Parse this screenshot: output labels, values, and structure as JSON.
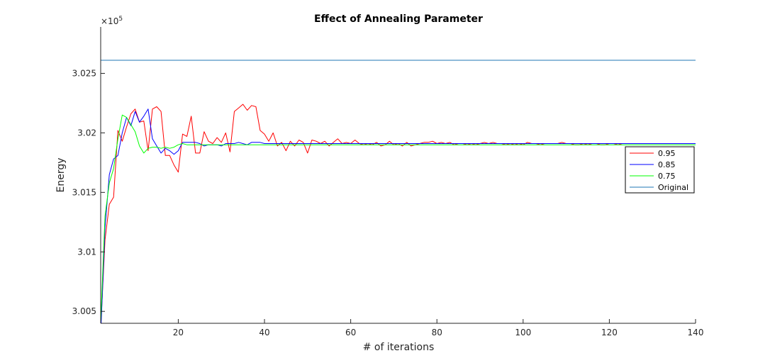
{
  "chart_data": {
    "type": "line",
    "title": "Effect of Annealing Parameter",
    "xlabel": "# of iterations",
    "ylabel": "Energy",
    "y_multiplier_label": "×10",
    "y_multiplier_exponent": "5",
    "xlim": [
      2,
      140
    ],
    "ylim": [
      3.004,
      3.0289
    ],
    "xticks": [
      20,
      40,
      60,
      80,
      100,
      120,
      140
    ],
    "xtick_labels": [
      "20",
      "40",
      "60",
      "80",
      "100",
      "120",
      "140"
    ],
    "yticks": [
      3.005,
      3.01,
      3.015,
      3.02,
      3.025
    ],
    "ytick_labels": [
      "3.005",
      "3.01",
      "3.015",
      "3.02",
      "3.025"
    ],
    "grid": false,
    "legend_position": "right",
    "series": [
      {
        "name": "0.95",
        "color": "#ff0000",
        "x": [
          2,
          3,
          4,
          5,
          6,
          7,
          8,
          9,
          10,
          11,
          12,
          13,
          14,
          15,
          16,
          17,
          18,
          19,
          20,
          21,
          22,
          23,
          24,
          25,
          26,
          27,
          28,
          29,
          30,
          31,
          32,
          33,
          34,
          35,
          36,
          37,
          38,
          39,
          40,
          41,
          42,
          43,
          44,
          45,
          46,
          47,
          48,
          49,
          50,
          51,
          52,
          53,
          54,
          55,
          56,
          57,
          58,
          59,
          60,
          61,
          62,
          63,
          64,
          65,
          66,
          67,
          68,
          69,
          70,
          71,
          72,
          73,
          74,
          75,
          76,
          77,
          78,
          79,
          80,
          81,
          82,
          83,
          84,
          85,
          86,
          87,
          88,
          89,
          90,
          91,
          92,
          93,
          94,
          95,
          96,
          97,
          98,
          99,
          100,
          101,
          102,
          103,
          104,
          105,
          106,
          107,
          108,
          109,
          110,
          111,
          112,
          113,
          114,
          115,
          116,
          117,
          118,
          119,
          120,
          121,
          122,
          123,
          124,
          125,
          126,
          127,
          128,
          129,
          130,
          131,
          132,
          133,
          134,
          135,
          136,
          137,
          138,
          139,
          140
        ],
        "y": [
          3.0035,
          3.011,
          3.014,
          3.0146,
          3.0202,
          3.0193,
          3.0205,
          3.0216,
          3.022,
          3.0209,
          3.021,
          3.0185,
          3.022,
          3.0222,
          3.0218,
          3.0181,
          3.0181,
          3.0173,
          3.0167,
          3.0199,
          3.0197,
          3.0214,
          3.0183,
          3.0183,
          3.0201,
          3.0193,
          3.0191,
          3.0196,
          3.0192,
          3.02,
          3.0184,
          3.0218,
          3.0221,
          3.0224,
          3.0219,
          3.0223,
          3.0222,
          3.0202,
          3.0199,
          3.0193,
          3.02,
          3.0189,
          3.0192,
          3.0185,
          3.0193,
          3.0189,
          3.0194,
          3.0192,
          3.0183,
          3.0194,
          3.0193,
          3.0191,
          3.0193,
          3.0189,
          3.0192,
          3.0195,
          3.0191,
          3.0192,
          3.0191,
          3.0194,
          3.0191,
          3.019,
          3.0191,
          3.019,
          3.0192,
          3.0189,
          3.019,
          3.0193,
          3.019,
          3.0191,
          3.0189,
          3.0192,
          3.0189,
          3.019,
          3.0191,
          3.0192,
          3.0192,
          3.0193,
          3.0191,
          3.0192,
          3.0191,
          3.0192,
          3.019,
          3.0191,
          3.0191,
          3.019,
          3.0191,
          3.019,
          3.0191,
          3.0192,
          3.0191,
          3.0192,
          3.0191,
          3.0191,
          3.019,
          3.0191,
          3.019,
          3.0191,
          3.019,
          3.0192,
          3.0191,
          3.0191,
          3.019,
          3.0191,
          3.0191,
          3.0191,
          3.0191,
          3.0192,
          3.0191,
          3.0191,
          3.019,
          3.019,
          3.0191,
          3.019,
          3.0191,
          3.0191,
          3.019,
          3.019,
          3.0191,
          3.0191,
          3.019,
          3.0191,
          3.0191,
          3.0191,
          3.0191,
          3.0191,
          3.0191,
          3.0191,
          3.0191,
          3.0191,
          3.0191,
          3.0191,
          3.0191,
          3.0191,
          3.0191,
          3.0191,
          3.0191,
          3.0191,
          3.0191
        ]
      },
      {
        "name": "0.85",
        "color": "#0000ff",
        "x": [
          2,
          3,
          4,
          5,
          6,
          7,
          8,
          9,
          10,
          11,
          12,
          13,
          14,
          15,
          16,
          17,
          18,
          19,
          20,
          21,
          22,
          23,
          24,
          25,
          26,
          27,
          28,
          29,
          30,
          31,
          32,
          33,
          34,
          35,
          36,
          37,
          38,
          39,
          40,
          45,
          50,
          60,
          80,
          100,
          120,
          140
        ],
        "y": [
          3.003,
          3.012,
          3.0165,
          3.0178,
          3.0181,
          3.02,
          3.0213,
          3.0206,
          3.0218,
          3.0209,
          3.0214,
          3.022,
          3.0195,
          3.0189,
          3.0183,
          3.0187,
          3.0185,
          3.0182,
          3.0185,
          3.0192,
          3.0192,
          3.0192,
          3.0192,
          3.0191,
          3.0189,
          3.019,
          3.019,
          3.019,
          3.0189,
          3.0191,
          3.0191,
          3.0191,
          3.0192,
          3.0191,
          3.019,
          3.0192,
          3.0192,
          3.0192,
          3.0191,
          3.0191,
          3.0191,
          3.0191,
          3.0191,
          3.0191,
          3.0191,
          3.0191
        ]
      },
      {
        "name": "0.75",
        "color": "#00ff00",
        "x": [
          2,
          3,
          4,
          5,
          6,
          7,
          8,
          9,
          10,
          11,
          12,
          13,
          14,
          15,
          16,
          17,
          18,
          19,
          20,
          21,
          22,
          23,
          24,
          25,
          26,
          27,
          28,
          29,
          30,
          31,
          32,
          33,
          34,
          35,
          40,
          50,
          60,
          80,
          100,
          120,
          140
        ],
        "y": [
          3.004,
          3.013,
          3.0158,
          3.017,
          3.0195,
          3.0215,
          3.0213,
          3.0207,
          3.0201,
          3.0189,
          3.0183,
          3.0187,
          3.0188,
          3.0188,
          3.0187,
          3.0188,
          3.0187,
          3.0188,
          3.019,
          3.0191,
          3.019,
          3.019,
          3.019,
          3.019,
          3.019,
          3.019,
          3.019,
          3.019,
          3.019,
          3.019,
          3.019,
          3.019,
          3.019,
          3.019,
          3.019,
          3.019,
          3.019,
          3.019,
          3.019,
          3.019,
          3.019
        ]
      },
      {
        "name": "Original",
        "color": "#1f77b4",
        "x": [
          2,
          140
        ],
        "y": [
          3.0261,
          3.0261
        ]
      }
    ]
  }
}
